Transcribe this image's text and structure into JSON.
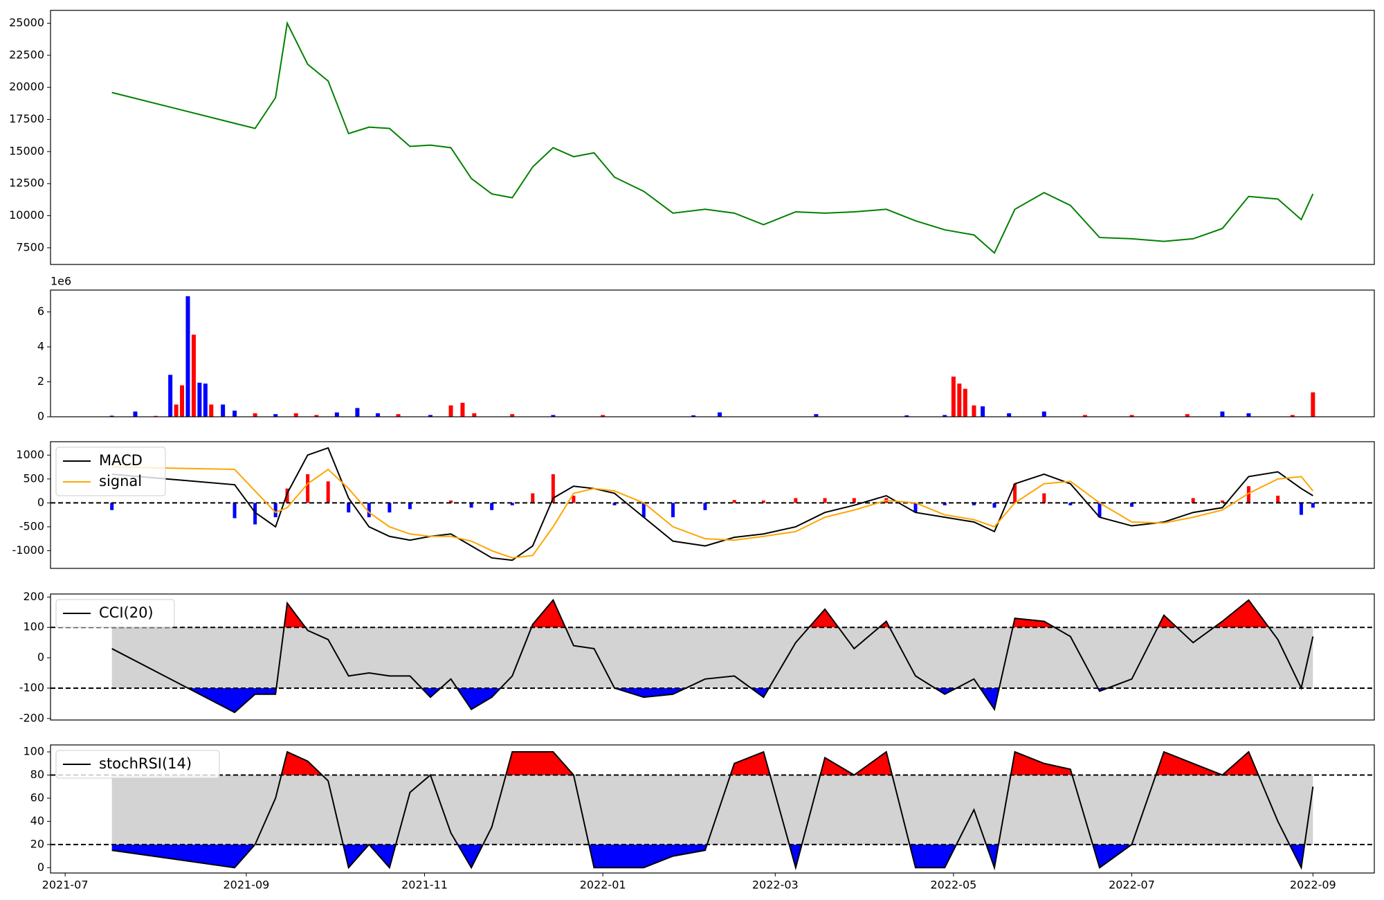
{
  "chart_data": [
    {
      "type": "line",
      "x": [
        "2021-07-17",
        "2021-08-28",
        "2021-09-04",
        "2021-09-11",
        "2021-09-15",
        "2021-09-22",
        "2021-09-29",
        "2021-10-06",
        "2021-10-13",
        "2021-10-20",
        "2021-10-27",
        "2021-11-03",
        "2021-11-10",
        "2021-11-17",
        "2021-11-24",
        "2021-12-01",
        "2021-12-08",
        "2021-12-15",
        "2021-12-22",
        "2021-12-29",
        "2022-01-05",
        "2022-01-15",
        "2022-01-25",
        "2022-02-05",
        "2022-02-15",
        "2022-02-25",
        "2022-03-08",
        "2022-03-18",
        "2022-03-28",
        "2022-04-08",
        "2022-04-18",
        "2022-04-28",
        "2022-05-08",
        "2022-05-15",
        "2022-05-22",
        "2022-06-01",
        "2022-06-10",
        "2022-06-20",
        "2022-07-01",
        "2022-07-12",
        "2022-07-22",
        "2022-08-01",
        "2022-08-10",
        "2022-08-20",
        "2022-08-28",
        "2022-09-01"
      ],
      "series": [
        {
          "color": "green",
          "values": [
            19600,
            17200,
            16800,
            19200,
            25000,
            21800,
            20500,
            16400,
            16900,
            16800,
            15400,
            15500,
            15300,
            12900,
            11700,
            11400,
            13800,
            15300,
            14600,
            14900,
            13000,
            11900,
            10200,
            10500,
            10200,
            9300,
            10300,
            10200,
            10300,
            10500,
            9600,
            8900,
            8500,
            7100,
            10500,
            11800,
            10800,
            8300,
            8200,
            8000,
            8200,
            9000,
            11500,
            11300,
            9700,
            11700
          ]
        }
      ],
      "ylim": [
        6200,
        26000
      ],
      "yticks": [
        7500,
        10000,
        12500,
        15000,
        17500,
        20000,
        22500,
        25000
      ]
    },
    {
      "type": "bar",
      "offset_text": "1e6",
      "x": [
        "2021-07-17",
        "2021-07-25",
        "2021-08-01",
        "2021-08-06",
        "2021-08-08",
        "2021-08-10",
        "2021-08-12",
        "2021-08-14",
        "2021-08-16",
        "2021-08-18",
        "2021-08-20",
        "2021-08-24",
        "2021-08-28",
        "2021-09-04",
        "2021-09-11",
        "2021-09-18",
        "2021-09-25",
        "2021-10-02",
        "2021-10-09",
        "2021-10-16",
        "2021-10-23",
        "2021-11-03",
        "2021-11-10",
        "2021-11-14",
        "2021-11-18",
        "2021-12-01",
        "2021-12-15",
        "2022-01-01",
        "2022-02-01",
        "2022-02-10",
        "2022-03-15",
        "2022-04-15",
        "2022-04-28",
        "2022-05-01",
        "2022-05-03",
        "2022-05-05",
        "2022-05-08",
        "2022-05-11",
        "2022-05-20",
        "2022-06-01",
        "2022-06-15",
        "2022-07-01",
        "2022-07-20",
        "2022-08-01",
        "2022-08-10",
        "2022-08-25",
        "2022-09-01"
      ],
      "values": [
        60000,
        300000,
        50000,
        2400000,
        700000,
        1800000,
        6900000,
        4700000,
        1950000,
        1900000,
        700000,
        700000,
        350000,
        200000,
        150000,
        200000,
        100000,
        250000,
        500000,
        200000,
        150000,
        100000,
        650000,
        800000,
        200000,
        150000,
        100000,
        100000,
        80000,
        250000,
        150000,
        80000,
        100000,
        2300000,
        1900000,
        1600000,
        650000,
        600000,
        200000,
        300000,
        100000,
        100000,
        150000,
        300000,
        200000,
        100000,
        1400000
      ],
      "colors": [
        "blue",
        "blue",
        "red",
        "blue",
        "red",
        "red",
        "blue",
        "red",
        "blue",
        "blue",
        "red",
        "blue",
        "blue",
        "red",
        "blue",
        "red",
        "red",
        "blue",
        "blue",
        "blue",
        "red",
        "blue",
        "red",
        "red",
        "red",
        "red",
        "blue",
        "red",
        "blue",
        "blue",
        "blue",
        "blue",
        "blue",
        "red",
        "red",
        "red",
        "red",
        "blue",
        "blue",
        "blue",
        "red",
        "red",
        "red",
        "blue",
        "blue",
        "red",
        "red"
      ],
      "ylim": [
        0,
        7250000
      ],
      "yticks": [
        {
          "value": 0,
          "label": "0"
        },
        {
          "value": 2000000,
          "label": "2"
        },
        {
          "value": 4000000,
          "label": "4"
        },
        {
          "value": 6000000,
          "label": "6"
        }
      ]
    },
    {
      "type": "line",
      "x": [
        "2021-07-17",
        "2021-08-28",
        "2021-09-04",
        "2021-09-11",
        "2021-09-15",
        "2021-09-22",
        "2021-09-29",
        "2021-10-06",
        "2021-10-13",
        "2021-10-20",
        "2021-10-27",
        "2021-11-03",
        "2021-11-10",
        "2021-11-17",
        "2021-11-24",
        "2021-12-01",
        "2021-12-08",
        "2021-12-15",
        "2021-12-22",
        "2021-12-29",
        "2022-01-05",
        "2022-01-15",
        "2022-01-25",
        "2022-02-05",
        "2022-02-15",
        "2022-02-25",
        "2022-03-08",
        "2022-03-18",
        "2022-03-28",
        "2022-04-08",
        "2022-04-18",
        "2022-04-28",
        "2022-05-08",
        "2022-05-15",
        "2022-05-22",
        "2022-06-01",
        "2022-06-10",
        "2022-06-20",
        "2022-07-01",
        "2022-07-12",
        "2022-07-22",
        "2022-08-01",
        "2022-08-10",
        "2022-08-20",
        "2022-08-28",
        "2022-09-01"
      ],
      "series": [
        {
          "name": "MACD",
          "color": "black",
          "values": [
            600,
            380,
            -200,
            -500,
            200,
            1000,
            1150,
            100,
            -500,
            -700,
            -780,
            -700,
            -650,
            -900,
            -1150,
            -1200,
            -900,
            100,
            350,
            300,
            200,
            -300,
            -800,
            -900,
            -720,
            -650,
            -500,
            -200,
            -50,
            150,
            -200,
            -300,
            -400,
            -600,
            400,
            600,
            400,
            -300,
            -480,
            -400,
            -200,
            -100,
            550,
            650,
            300,
            150
          ]
        },
        {
          "name": "signal",
          "color": "orange",
          "values": [
            750,
            700,
            250,
            -200,
            -100,
            400,
            700,
            300,
            -200,
            -500,
            -650,
            -700,
            -700,
            -800,
            -1000,
            -1150,
            -1100,
            -500,
            200,
            300,
            250,
            0,
            -500,
            -750,
            -780,
            -700,
            -600,
            -300,
            -150,
            50,
            0,
            -250,
            -350,
            -500,
            0,
            400,
            450,
            0,
            -400,
            -420,
            -300,
            -150,
            200,
            500,
            550,
            250
          ]
        }
      ],
      "histogram": {
        "values": [
          -150,
          -320,
          -450,
          -300,
          300,
          600,
          450,
          -200,
          -300,
          -200,
          -130,
          0,
          50,
          -100,
          -150,
          -50,
          200,
          600,
          150,
          0,
          -50,
          -300,
          -300,
          -150,
          60,
          50,
          100,
          100,
          100,
          100,
          -200,
          -50,
          -50,
          -100,
          400,
          200,
          -50,
          -300,
          -80,
          20,
          100,
          50,
          350,
          150,
          -250,
          -100
        ],
        "up_color": "red",
        "down_color": "blue"
      },
      "hlines": [
        0
      ],
      "legend": "upper left",
      "ylim": [
        -1370,
        1280
      ],
      "yticks": [
        -1000,
        -500,
        0,
        500,
        1000
      ]
    },
    {
      "type": "line",
      "x": [
        "2021-07-17",
        "2021-08-28",
        "2021-09-04",
        "2021-09-11",
        "2021-09-15",
        "2021-09-22",
        "2021-09-29",
        "2021-10-06",
        "2021-10-13",
        "2021-10-20",
        "2021-10-27",
        "2021-11-03",
        "2021-11-10",
        "2021-11-17",
        "2021-11-24",
        "2021-12-01",
        "2021-12-08",
        "2021-12-15",
        "2021-12-22",
        "2021-12-29",
        "2022-01-05",
        "2022-01-15",
        "2022-01-25",
        "2022-02-05",
        "2022-02-15",
        "2022-02-25",
        "2022-03-08",
        "2022-03-18",
        "2022-03-28",
        "2022-04-08",
        "2022-04-18",
        "2022-04-28",
        "2022-05-08",
        "2022-05-15",
        "2022-05-22",
        "2022-06-01",
        "2022-06-10",
        "2022-06-20",
        "2022-07-01",
        "2022-07-12",
        "2022-07-22",
        "2022-08-01",
        "2022-08-10",
        "2022-08-20",
        "2022-08-28",
        "2022-09-01"
      ],
      "series": [
        {
          "name": "CCI(20)",
          "color": "black",
          "values": [
            30,
            -180,
            -120,
            -120,
            180,
            90,
            60,
            -60,
            -50,
            -60,
            -60,
            -130,
            -70,
            -170,
            -130,
            -60,
            110,
            190,
            40,
            30,
            -100,
            -130,
            -120,
            -70,
            -60,
            -130,
            50,
            160,
            30,
            120,
            -60,
            -120,
            -70,
            -170,
            130,
            120,
            70,
            -110,
            -70,
            140,
            50,
            120,
            190,
            60,
            -100,
            70
          ]
        }
      ],
      "hlines": [
        100,
        -100
      ],
      "fill": {
        "band": "#d3d3d3",
        "above": "red",
        "below": "blue"
      },
      "legend": "upper left",
      "ylim": [
        -205,
        210
      ],
      "yticks": [
        -200,
        -100,
        0,
        100,
        200
      ]
    },
    {
      "type": "line",
      "x": [
        "2021-07-17",
        "2021-08-28",
        "2021-09-04",
        "2021-09-11",
        "2021-09-15",
        "2021-09-22",
        "2021-09-29",
        "2021-10-06",
        "2021-10-13",
        "2021-10-20",
        "2021-10-27",
        "2021-11-03",
        "2021-11-10",
        "2021-11-17",
        "2021-11-24",
        "2021-12-01",
        "2021-12-08",
        "2021-12-15",
        "2021-12-22",
        "2021-12-29",
        "2022-01-05",
        "2022-01-15",
        "2022-01-25",
        "2022-02-05",
        "2022-02-15",
        "2022-02-25",
        "2022-03-08",
        "2022-03-18",
        "2022-03-28",
        "2022-04-08",
        "2022-04-18",
        "2022-04-28",
        "2022-05-08",
        "2022-05-15",
        "2022-05-22",
        "2022-06-01",
        "2022-06-10",
        "2022-06-20",
        "2022-07-01",
        "2022-07-12",
        "2022-07-22",
        "2022-08-01",
        "2022-08-10",
        "2022-08-20",
        "2022-08-28",
        "2022-09-01"
      ],
      "series": [
        {
          "name": "stochRSI(14)",
          "color": "black",
          "values": [
            15,
            0,
            20,
            60,
            100,
            92,
            75,
            0,
            20,
            0,
            65,
            80,
            30,
            0,
            35,
            100,
            100,
            100,
            80,
            0,
            0,
            0,
            10,
            15,
            90,
            100,
            0,
            95,
            80,
            100,
            0,
            0,
            50,
            0,
            100,
            90,
            85,
            0,
            20,
            100,
            90,
            80,
            100,
            40,
            0,
            70
          ]
        }
      ],
      "hlines": [
        80,
        20
      ],
      "fill": {
        "band": "#d3d3d3",
        "above": "red",
        "below": "blue"
      },
      "legend": "upper left",
      "ylim": [
        -4.6,
        106
      ],
      "yticks": [
        0,
        20,
        40,
        60,
        80,
        100
      ],
      "xlim": [
        "2021-06-26",
        "2022-09-22"
      ],
      "xticks": [
        "2021-07",
        "2021-09",
        "2021-11",
        "2022-01",
        "2022-03",
        "2022-05",
        "2022-07",
        "2022-09"
      ]
    }
  ]
}
